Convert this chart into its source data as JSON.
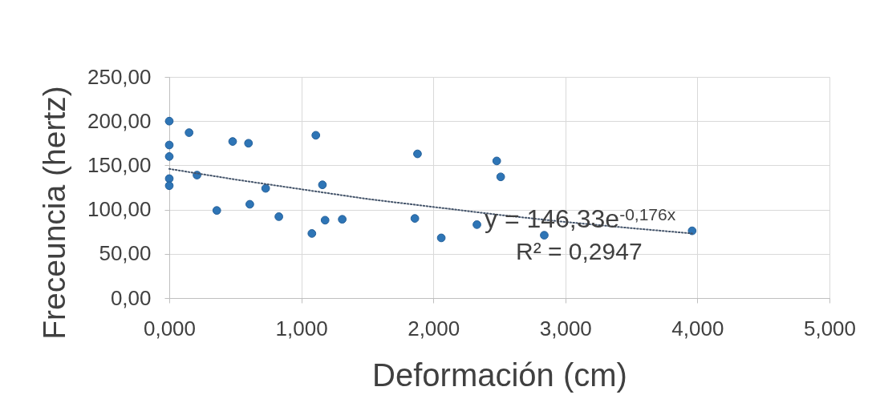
{
  "chart_data": {
    "type": "scatter",
    "xlabel": "Deformación (cm)",
    "ylabel": "Freceuncia (hertz)",
    "xlim": [
      0,
      5
    ],
    "ylim": [
      0,
      250
    ],
    "xticks": [
      {
        "value": 0,
        "label": "0,000"
      },
      {
        "value": 1,
        "label": "1,000"
      },
      {
        "value": 2,
        "label": "2,000"
      },
      {
        "value": 3,
        "label": "3,000"
      },
      {
        "value": 4,
        "label": "4,000"
      },
      {
        "value": 5,
        "label": "5,000"
      }
    ],
    "yticks": [
      {
        "value": 0,
        "label": "0,00"
      },
      {
        "value": 50,
        "label": "50,00"
      },
      {
        "value": 100,
        "label": "100,00"
      },
      {
        "value": 150,
        "label": "150,00"
      },
      {
        "value": 200,
        "label": "200,00"
      },
      {
        "value": 250,
        "label": "250,00"
      }
    ],
    "grid": true,
    "marker": "circle",
    "annotations": [
      "y = 146,33e$^{-0,176x}$",
      "R² = 0,2947"
    ],
    "series": [
      {
        "color": "#2e75b6",
        "x": [
          0,
          0.15,
          0,
          0,
          0.48,
          0.6,
          1.11,
          0,
          0,
          0.21,
          0.73,
          1.16,
          0.36,
          0.61,
          0.83,
          1.08,
          1.18,
          1.31,
          1.88,
          1.86,
          2.06,
          2.33,
          2.48,
          2.51,
          2.84,
          3.96
        ],
        "values": [
          200,
          187,
          173,
          160,
          177,
          175,
          184,
          135,
          127,
          139,
          124,
          128,
          99,
          106,
          92,
          73,
          88,
          89,
          163,
          90,
          68,
          83,
          155,
          137,
          71,
          76
        ]
      },
      {
        "type": "line",
        "color": "#44546a",
        "line_style": "dotted",
        "marker": "none",
        "x": [
          0,
          0.5,
          1,
          1.5,
          2,
          2.5,
          3,
          3.5,
          3.96
        ],
        "values": [
          146,
          134,
          123,
          112,
          103,
          94,
          86,
          79,
          73
        ]
      }
    ]
  }
}
